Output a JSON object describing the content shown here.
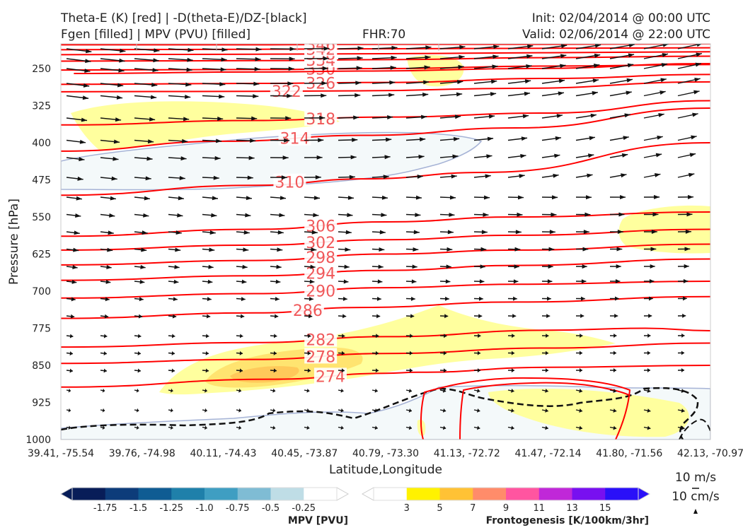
{
  "header": {
    "title_left_1": "Theta-E (K) [red] | -D(theta-E)/DZ-[black]",
    "title_left_2": "Fgen [filled] | MPV (PVU) [filled]",
    "fhr": "FHR:70",
    "init": "Init: 02/04/2014 @ 00:00 UTC",
    "valid": "Valid: 02/06/2014 @ 22:00 UTC"
  },
  "chart_data": {
    "type": "cross-section",
    "xlabel": "Latitude,Longitude",
    "ylabel": "Pressure [hPa]",
    "x_ticks": [
      "39.41, -75.54",
      "39.76, -74.98",
      "40.11, -74.43",
      "40.45, -73.87",
      "40.79, -73.30",
      "41.13, -72.72",
      "41.47, -72.14",
      "41.80, -71.56",
      "42.13, -70.97"
    ],
    "y_ticks": [
      250,
      325,
      400,
      475,
      550,
      625,
      700,
      775,
      850,
      925,
      1000
    ],
    "ylim": [
      1000,
      200
    ],
    "theta_e_contours": [
      {
        "value": "274",
        "points": [
          [
            0,
            894
          ],
          [
            0.33,
            878
          ],
          [
            0.5,
            866
          ],
          [
            0.55,
            864
          ],
          [
            0.75,
            854
          ],
          [
            1,
            850
          ]
        ]
      },
      {
        "value": "278",
        "points": [
          [
            0,
            846
          ],
          [
            0.3,
            838
          ],
          [
            0.5,
            826
          ],
          [
            0.75,
            815
          ],
          [
            1,
            805
          ]
        ]
      },
      {
        "value": "282",
        "points": [
          [
            0,
            813
          ],
          [
            0.3,
            804
          ],
          [
            0.5,
            792
          ],
          [
            0.75,
            779
          ],
          [
            0.9,
            775
          ],
          [
            1,
            780
          ]
        ]
      },
      {
        "value": "286",
        "points": [
          [
            0,
            755
          ],
          [
            0.3,
            744
          ],
          [
            0.46,
            733
          ],
          [
            0.7,
            722
          ],
          [
            1,
            711
          ]
        ]
      },
      {
        "value": "290",
        "points": [
          [
            0,
            714
          ],
          [
            0.3,
            705
          ],
          [
            0.5,
            693
          ],
          [
            0.7,
            686
          ],
          [
            1,
            680
          ]
        ]
      },
      {
        "value": "294",
        "points": [
          [
            0,
            678
          ],
          [
            0.3,
            669
          ],
          [
            0.5,
            658
          ],
          [
            0.7,
            648
          ],
          [
            1,
            635
          ]
        ]
      },
      {
        "value": "298",
        "points": [
          [
            0,
            647
          ],
          [
            0.3,
            638
          ],
          [
            0.5,
            625
          ],
          [
            0.7,
            617
          ],
          [
            1,
            605
          ]
        ]
      },
      {
        "value": "302",
        "points": [
          [
            0,
            617
          ],
          [
            0.3,
            607
          ],
          [
            0.5,
            596
          ],
          [
            0.7,
            587
          ],
          [
            1,
            575
          ]
        ]
      },
      {
        "value": "306",
        "points": [
          [
            0,
            589
          ],
          [
            0.3,
            575
          ],
          [
            0.5,
            560
          ],
          [
            0.7,
            550
          ],
          [
            1,
            540
          ]
        ]
      },
      {
        "value": "310",
        "points": [
          [
            0,
            506
          ],
          [
            0.3,
            486
          ],
          [
            0.47,
            473
          ],
          [
            0.65,
            460
          ],
          [
            1,
            400
          ]
        ]
      },
      {
        "value": "314",
        "points": [
          [
            0,
            417
          ],
          [
            0.25,
            397
          ],
          [
            0.47,
            385
          ],
          [
            0.7,
            370
          ],
          [
            1,
            330
          ]
        ]
      },
      {
        "value": "318",
        "points": [
          [
            0,
            364
          ],
          [
            0.3,
            355
          ],
          [
            0.5,
            348
          ],
          [
            0.75,
            340
          ],
          [
            1,
            315
          ]
        ]
      },
      {
        "value": "322",
        "points": [
          [
            0,
            297
          ],
          [
            0.3,
            296
          ],
          [
            0.46,
            295
          ],
          [
            0.7,
            290
          ],
          [
            1,
            277
          ]
        ]
      },
      {
        "value": "326",
        "points": [
          [
            0,
            282
          ],
          [
            0.3,
            280
          ],
          [
            0.5,
            278
          ],
          [
            0.75,
            270
          ],
          [
            1,
            262
          ]
        ]
      },
      {
        "value": "330",
        "points": [
          [
            0,
            253
          ],
          [
            0.3,
            252
          ],
          [
            0.5,
            250
          ],
          [
            0.75,
            245
          ],
          [
            1,
            242
          ]
        ]
      },
      {
        "value": "334",
        "points": [
          [
            0,
            235
          ],
          [
            0.3,
            234
          ],
          [
            0.5,
            232
          ],
          [
            0.75,
            228
          ],
          [
            1,
            225
          ]
        ]
      },
      {
        "value": "338",
        "points": [
          [
            0,
            222
          ],
          [
            0.3,
            221
          ],
          [
            0.5,
            220
          ],
          [
            0.75,
            218
          ],
          [
            1,
            216
          ]
        ]
      },
      {
        "value": "342",
        "points": [
          [
            0,
            212
          ],
          [
            0.3,
            211
          ],
          [
            0.5,
            210
          ],
          [
            0.75,
            209
          ],
          [
            1,
            208
          ]
        ]
      },
      {
        "value": "346",
        "points": [
          [
            0,
            202
          ],
          [
            0.3,
            202
          ],
          [
            0.5,
            201
          ],
          [
            0.75,
            201
          ],
          [
            1,
            200
          ]
        ]
      },
      {
        "value": "",
        "points": [
          [
            0.02,
            260
          ],
          [
            0.3,
            257
          ],
          [
            0.48,
            255
          ],
          [
            0.72,
            250
          ],
          [
            1,
            240
          ]
        ]
      }
    ],
    "vector_scale": [
      "10 m/s",
      "10 cm/s"
    ],
    "mpv_colorbar": {
      "label": "MPV [PVU]",
      "ticks": [
        "-1.75",
        "-1.5",
        "-1.25",
        "-1.0",
        "-0.75",
        "-0.5",
        "-0.25"
      ],
      "colors": [
        "#081d58",
        "#0d3c7a",
        "#0f5c93",
        "#1f80aa",
        "#3f9ec2",
        "#7fbcd4",
        "#bfdde6",
        "#ffffff"
      ]
    },
    "fgen_colorbar": {
      "label": "Frontogenesis [K/100km/3hr]",
      "ticks": [
        "3",
        "5",
        "7",
        "9",
        "11",
        "13",
        "15"
      ],
      "colors": [
        "#ffffff",
        "#fff200",
        "#ffc235",
        "#ff8c6a",
        "#ff55a0",
        "#c028d8",
        "#7810f0",
        "#2a10f8"
      ]
    }
  }
}
